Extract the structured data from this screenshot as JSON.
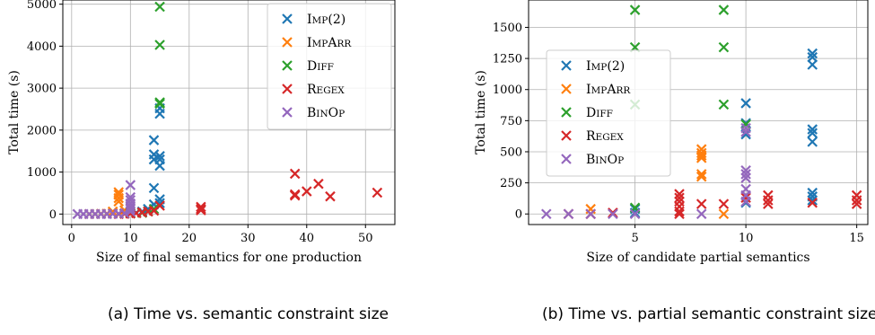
{
  "colors": {
    "Imp(2)": "#1f77b4",
    "ImpArr": "#ff7f0e",
    "Diff": "#2ca02c",
    "Regex": "#d62728",
    "BinOp": "#9467bd"
  },
  "captions": {
    "a": "(a) Time vs. semantic constraint size",
    "b": "(b) Time vs. partial semantic constraint size"
  },
  "chart_data": [
    {
      "type": "scatter",
      "xlabel": "Size of final semantics for one production",
      "ylabel": "Total time (s)",
      "xlim": [
        -1.5,
        55
      ],
      "ylim": [
        -250,
        5100
      ],
      "xticks": [
        0,
        10,
        20,
        30,
        40,
        50
      ],
      "yticks": [
        0,
        1000,
        2000,
        3000,
        4000,
        5000
      ],
      "grid": true,
      "legend": "top-right",
      "series": [
        {
          "name": "Imp(2)",
          "points": [
            [
              14,
              1760
            ],
            [
              14,
              1420
            ],
            [
              14,
              1300
            ],
            [
              14,
              620
            ],
            [
              15,
              1380
            ],
            [
              15,
              1300
            ],
            [
              15,
              1150
            ],
            [
              15,
              2520
            ],
            [
              15,
              2390
            ],
            [
              15,
              350
            ],
            [
              15,
              260
            ],
            [
              14,
              230
            ],
            [
              13,
              120
            ],
            [
              12,
              60
            ],
            [
              11,
              30
            ],
            [
              10,
              20
            ],
            [
              9,
              10
            ]
          ]
        },
        {
          "name": "ImpArr",
          "points": [
            [
              8,
              520
            ],
            [
              8,
              460
            ],
            [
              8,
              380
            ],
            [
              8,
              300
            ],
            [
              7,
              60
            ],
            [
              7,
              20
            ],
            [
              6,
              10
            ],
            [
              5,
              5
            ],
            [
              4,
              0
            ],
            [
              3,
              0
            ],
            [
              9,
              90
            ]
          ]
        },
        {
          "name": "Diff",
          "points": [
            [
              15,
              4940
            ],
            [
              15,
              4030
            ],
            [
              15,
              2660
            ],
            [
              15,
              2630
            ],
            [
              14,
              120
            ],
            [
              13,
              60
            ],
            [
              12,
              30
            ],
            [
              10,
              20
            ],
            [
              9,
              10
            ]
          ]
        },
        {
          "name": "Regex",
          "points": [
            [
              38,
              960
            ],
            [
              38,
              470
            ],
            [
              38,
              440
            ],
            [
              40,
              540
            ],
            [
              42,
              720
            ],
            [
              44,
              420
            ],
            [
              52,
              510
            ],
            [
              22,
              170
            ],
            [
              22,
              120
            ],
            [
              22,
              90
            ],
            [
              15,
              200
            ],
            [
              14,
              80
            ],
            [
              13,
              60
            ],
            [
              12,
              40
            ],
            [
              11,
              20
            ],
            [
              10,
              10
            ],
            [
              9,
              5
            ],
            [
              8,
              0
            ]
          ]
        },
        {
          "name": "BinOp",
          "points": [
            [
              10,
              690
            ],
            [
              10,
              400
            ],
            [
              10,
              330
            ],
            [
              10,
              250
            ],
            [
              10,
              180
            ],
            [
              10,
              120
            ],
            [
              10,
              60
            ],
            [
              9,
              20
            ],
            [
              8,
              10
            ],
            [
              7,
              5
            ],
            [
              6,
              0
            ],
            [
              5,
              0
            ],
            [
              4,
              0
            ],
            [
              3,
              0
            ],
            [
              2,
              0
            ],
            [
              1,
              0
            ]
          ]
        }
      ]
    },
    {
      "type": "scatter",
      "xlabel": "Size of candidate partial semantics",
      "ylabel": "Total time (s)",
      "xlim": [
        0.2,
        15.5
      ],
      "ylim": [
        -85,
        1720
      ],
      "xticks": [
        5,
        10,
        15
      ],
      "yticks": [
        0,
        250,
        500,
        750,
        1000,
        1250,
        1500
      ],
      "grid": true,
      "legend": "upper-left",
      "series": [
        {
          "name": "Imp(2)",
          "points": [
            [
              13,
              1290
            ],
            [
              13,
              1260
            ],
            [
              13,
              1200
            ],
            [
              13,
              680
            ],
            [
              13,
              650
            ],
            [
              13,
              580
            ],
            [
              13,
              170
            ],
            [
              13,
              140
            ],
            [
              13,
              110
            ],
            [
              10,
              890
            ],
            [
              10,
              730
            ],
            [
              10,
              640
            ],
            [
              10,
              90
            ],
            [
              5,
              40
            ],
            [
              5,
              10
            ]
          ]
        },
        {
          "name": "ImpArr",
          "points": [
            [
              8,
              520
            ],
            [
              8,
              490
            ],
            [
              8,
              470
            ],
            [
              8,
              450
            ],
            [
              8,
              320
            ],
            [
              8,
              300
            ],
            [
              9,
              0
            ],
            [
              3,
              40
            ],
            [
              3,
              0
            ]
          ]
        },
        {
          "name": "Diff",
          "points": [
            [
              5,
              1640
            ],
            [
              5,
              1340
            ],
            [
              5,
              880
            ],
            [
              9,
              1640
            ],
            [
              9,
              1340
            ],
            [
              9,
              880
            ],
            [
              10,
              720
            ],
            [
              5,
              50
            ]
          ]
        },
        {
          "name": "Regex",
          "points": [
            [
              7,
              160
            ],
            [
              7,
              130
            ],
            [
              7,
              100
            ],
            [
              7,
              60
            ],
            [
              7,
              20
            ],
            [
              7,
              0
            ],
            [
              8,
              80
            ],
            [
              9,
              80
            ],
            [
              10,
              130
            ],
            [
              11,
              150
            ],
            [
              11,
              110
            ],
            [
              11,
              80
            ],
            [
              13,
              90
            ],
            [
              15,
              150
            ],
            [
              15,
              110
            ],
            [
              15,
              80
            ],
            [
              4,
              10
            ],
            [
              3,
              0
            ],
            [
              2,
              0
            ]
          ]
        },
        {
          "name": "BinOp",
          "points": [
            [
              10,
              350
            ],
            [
              10,
              320
            ],
            [
              10,
              290
            ],
            [
              10,
              200
            ],
            [
              10,
              150
            ],
            [
              10,
              100
            ],
            [
              10,
              690
            ],
            [
              10,
              660
            ],
            [
              1,
              0
            ],
            [
              2,
              0
            ],
            [
              3,
              0
            ],
            [
              4,
              0
            ],
            [
              5,
              0
            ],
            [
              8,
              0
            ]
          ]
        }
      ]
    }
  ]
}
